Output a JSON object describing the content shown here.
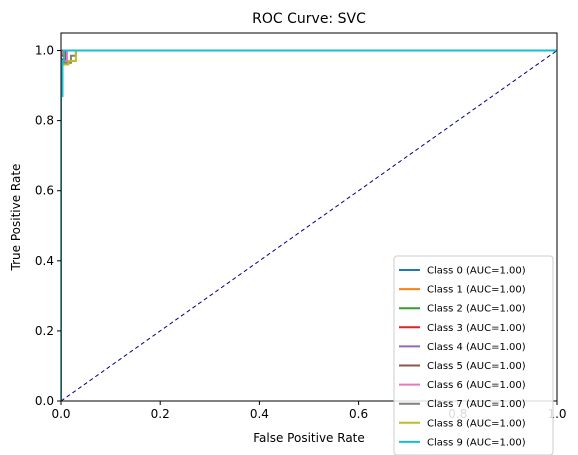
{
  "chart_data": {
    "type": "line",
    "title": "ROC Curve: SVC",
    "xlabel": "False Positive Rate",
    "ylabel": "True Positive Rate",
    "xlim": [
      0.0,
      1.0
    ],
    "ylim": [
      0.0,
      1.05
    ],
    "x_ticks": [
      "0.0",
      "0.2",
      "0.4",
      "0.6",
      "0.8",
      "1.0"
    ],
    "y_ticks": [
      "0.0",
      "0.2",
      "0.4",
      "0.6",
      "0.8",
      "1.0"
    ],
    "grid": false,
    "legend_position": "bottom-right",
    "reference_line": {
      "x": [
        0,
        1
      ],
      "y": [
        0,
        1
      ],
      "color": "#000080",
      "style": "dashed"
    },
    "series": [
      {
        "name": "Class 0 (AUC=1.00)",
        "color": "#1f77b4",
        "x": [
          0,
          0,
          1
        ],
        "y": [
          0,
          1,
          1
        ]
      },
      {
        "name": "Class 1 (AUC=1.00)",
        "color": "#ff7f0e",
        "x": [
          0,
          0,
          0.004,
          0.004,
          1
        ],
        "y": [
          0,
          0.99,
          0.99,
          1,
          1
        ]
      },
      {
        "name": "Class 2 (AUC=1.00)",
        "color": "#2ca02c",
        "x": [
          0,
          0,
          1
        ],
        "y": [
          0,
          1,
          1
        ]
      },
      {
        "name": "Class 3 (AUC=1.00)",
        "color": "#d62728",
        "x": [
          0,
          0,
          0.006,
          0.006,
          1
        ],
        "y": [
          0,
          0.985,
          0.985,
          1,
          1
        ]
      },
      {
        "name": "Class 4 (AUC=1.00)",
        "color": "#9467bd",
        "x": [
          0,
          0,
          1
        ],
        "y": [
          0,
          1,
          1
        ]
      },
      {
        "name": "Class 5 (AUC=1.00)",
        "color": "#8c564b",
        "x": [
          0,
          0,
          0.01,
          0.01,
          1
        ],
        "y": [
          0,
          0.975,
          0.975,
          1,
          1
        ]
      },
      {
        "name": "Class 6 (AUC=1.00)",
        "color": "#e377c2",
        "x": [
          0,
          0,
          0.012,
          0.012,
          1
        ],
        "y": [
          0,
          0.97,
          0.97,
          1,
          1
        ]
      },
      {
        "name": "Class 7 (AUC=1.00)",
        "color": "#7f7f7f",
        "x": [
          0,
          0,
          0.02,
          0.02,
          0.03,
          0.03,
          1
        ],
        "y": [
          0,
          0.965,
          0.965,
          0.985,
          0.985,
          1,
          1
        ]
      },
      {
        "name": "Class 8 (AUC=1.00)",
        "color": "#bcbd22",
        "x": [
          0,
          0,
          0.015,
          0.015,
          0.03,
          0.03,
          1
        ],
        "y": [
          0,
          0.96,
          0.96,
          0.97,
          0.97,
          1,
          1
        ]
      },
      {
        "name": "Class 9 (AUC=1.00)",
        "color": "#17becf",
        "x": [
          0,
          0,
          0.003,
          0.003,
          0.006,
          0.006,
          1
        ],
        "y": [
          0,
          0.87,
          0.87,
          0.97,
          0.97,
          1,
          1
        ]
      }
    ]
  }
}
